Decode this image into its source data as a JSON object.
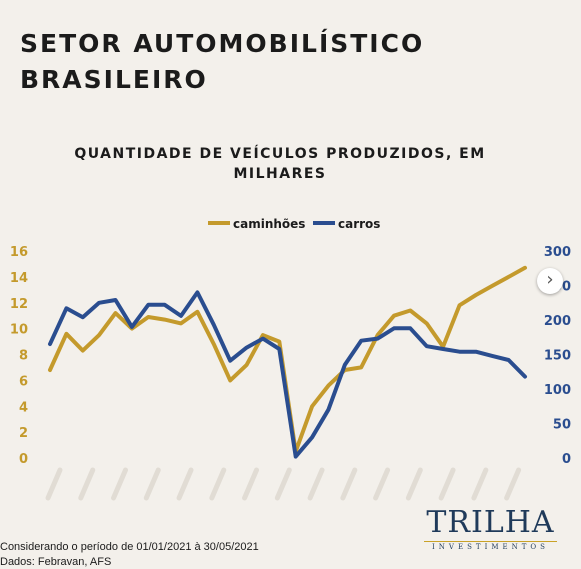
{
  "header": {
    "title_line1": "SETOR AUTOMOBILÍSTICO",
    "title_line2": "BRASILEIRO"
  },
  "chart_data": {
    "type": "line",
    "title": "QUANTIDADE DE VEÍCULOS PRODUZIDOS, EM MILHARES",
    "legend_position": "top-center",
    "grid": false,
    "x_labels_legible": false,
    "series": [
      {
        "name": "caminhões",
        "axis": "left",
        "color": "#c49a2c",
        "values": [
          6.8,
          9.6,
          8.3,
          9.5,
          11.2,
          10,
          10.9,
          10.7,
          10.4,
          11.3,
          8.8,
          6.0,
          7.2,
          9.5,
          9.0,
          0.5,
          4.0,
          5.6,
          6.8,
          7.0,
          9.5,
          11.0,
          11.4,
          10.4,
          8.6,
          11.8,
          12.6,
          13.3,
          14.0,
          14.7
        ]
      },
      {
        "name": "carros",
        "axis": "right",
        "color": "#2a4d8f",
        "values": [
          165,
          217,
          204,
          225,
          229,
          190,
          222,
          222,
          206,
          240,
          193,
          141,
          160,
          173,
          158,
          2,
          30,
          70,
          135,
          170,
          173,
          188,
          188,
          162,
          158,
          154,
          154,
          148,
          142,
          118
        ]
      }
    ],
    "y_left": {
      "ticks": [
        "0",
        "2",
        "4",
        "6",
        "8",
        "10",
        "12",
        "14",
        "16"
      ],
      "ylim": [
        0,
        16
      ],
      "color": "#c49a2c"
    },
    "y_right": {
      "ticks": [
        "0",
        "50",
        "100",
        "150",
        "200",
        "250",
        "300"
      ],
      "ylim": [
        0,
        300
      ],
      "color": "#2a4d8f"
    }
  },
  "footer": {
    "note1": "Considerando o período de 01/01/2021 à  30/05/2021",
    "note2": "Dados: Febravan, AFS"
  },
  "logo": {
    "main": "TRILHA",
    "sub": "INVESTIMENTOS"
  },
  "nav": {
    "next_icon": "›"
  }
}
